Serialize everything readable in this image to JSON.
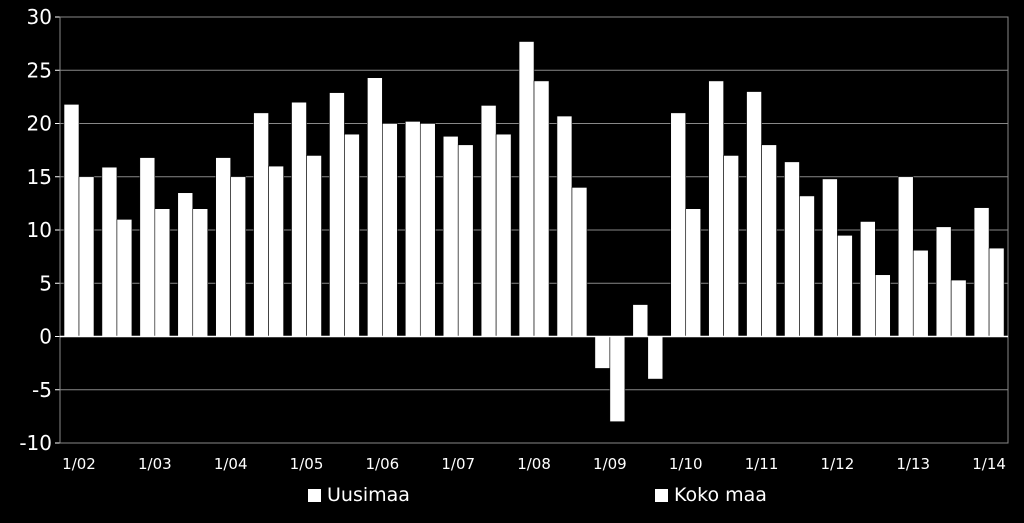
{
  "chart_data": {
    "type": "bar",
    "ylim": [
      -10,
      30
    ],
    "yticks": [
      30,
      25,
      20,
      15,
      10,
      5,
      0,
      -5,
      -10
    ],
    "grid": true,
    "legend_position": "bottom",
    "x_tick_labels": [
      "1/02",
      "1/03",
      "1/04",
      "1/05",
      "1/06",
      "1/07",
      "1/08",
      "1/09",
      "1/10",
      "1/11",
      "1/12",
      "1/13",
      "1/14"
    ],
    "series": [
      {
        "name": "Uusimaa",
        "color": "#ffffff",
        "values": [
          21.8,
          15.9,
          16.8,
          13.5,
          16.8,
          21.0,
          22.0,
          22.9,
          24.3,
          20.2,
          18.8,
          21.7,
          27.7,
          20.7,
          -3.0,
          3.0,
          21.0,
          24.0,
          23.0,
          16.4,
          14.8,
          10.8,
          15.0,
          10.3,
          12.1
        ]
      },
      {
        "name": "Koko maa",
        "color": "#ffffff",
        "values": [
          15.0,
          11.0,
          12.0,
          12.0,
          15.0,
          16.0,
          17.0,
          19.0,
          20.0,
          20.0,
          18.0,
          19.0,
          24.0,
          14.0,
          -8.0,
          -4.0,
          12.0,
          17.0,
          18.0,
          13.2,
          9.5,
          5.8,
          8.1,
          5.3,
          8.3
        ]
      }
    ]
  }
}
